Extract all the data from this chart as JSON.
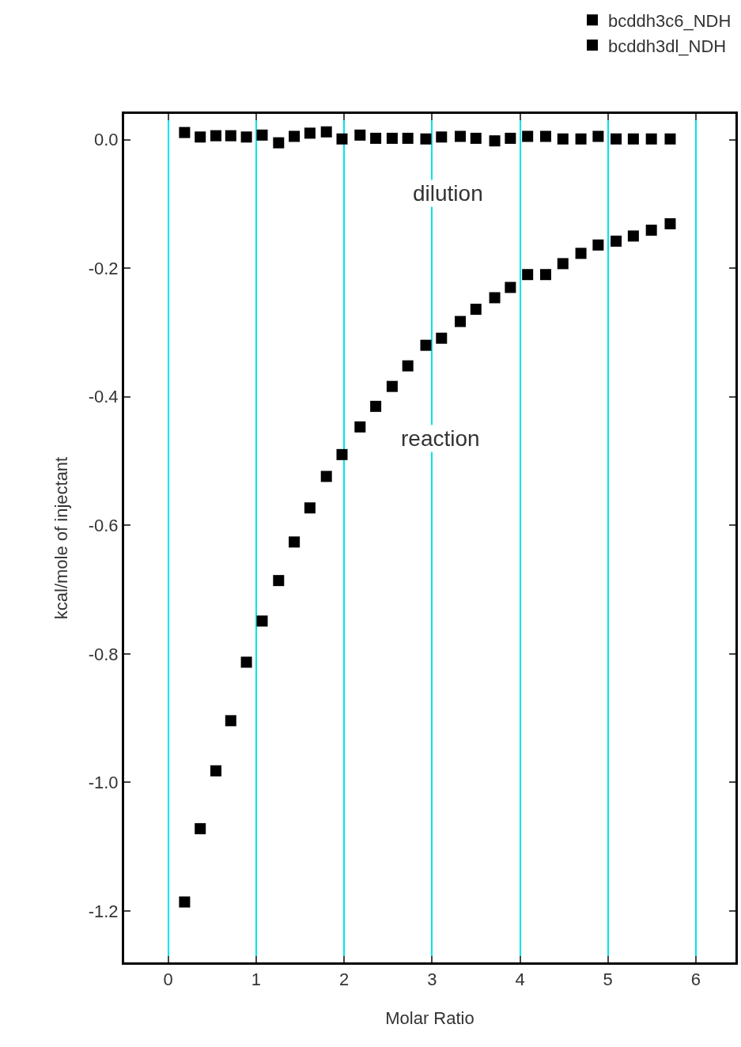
{
  "chart_data": {
    "type": "scatter",
    "xlabel": "Molar Ratio",
    "ylabel": "kcal/mole of injectant",
    "x": [
      0.187,
      0.365,
      0.543,
      0.712,
      0.89,
      1.069,
      1.256,
      1.434,
      1.612,
      1.799,
      1.977,
      2.182,
      2.36,
      2.547,
      2.725,
      2.93,
      3.108,
      3.321,
      3.499,
      3.713,
      3.891,
      4.087,
      4.292,
      4.488,
      4.693,
      4.889,
      5.093,
      5.289,
      5.494,
      5.708
    ],
    "series": [
      {
        "name": "bcddh3c6_NDH",
        "color": "#000000",
        "values": [
          -1.186,
          -1.072,
          -0.982,
          -0.904,
          -0.813,
          -0.749,
          -0.686,
          -0.626,
          -0.573,
          -0.524,
          -0.49,
          -0.447,
          -0.415,
          -0.384,
          -0.352,
          -0.32,
          -0.309,
          -0.283,
          -0.264,
          -0.246,
          -0.23,
          -0.21,
          -0.21,
          -0.193,
          -0.177,
          -0.164,
          -0.158,
          -0.15,
          -0.141,
          -0.131
        ]
      },
      {
        "name": "bcddh3dl_NDH",
        "color": "#000000",
        "values": [
          0.011,
          0.004,
          0.006,
          0.006,
          0.004,
          0.007,
          -0.005,
          0.005,
          0.01,
          0.012,
          0.001,
          0.007,
          0.002,
          0.002,
          0.002,
          0.001,
          0.004,
          0.005,
          0.002,
          -0.002,
          0.002,
          0.005,
          0.005,
          0.001,
          0.001,
          0.005,
          0.001,
          0.001,
          0.001,
          0.001
        ]
      }
    ],
    "annotations": [
      "dilution",
      "reaction"
    ],
    "xlim": [
      -0.5,
      6.45
    ],
    "xticks": [
      0,
      1,
      2,
      3,
      4,
      5,
      6
    ],
    "ylim": [
      -1.28,
      0.04
    ],
    "yticks": [
      {
        "value": 0,
        "label": "0.0"
      },
      {
        "value": -0.2,
        "label": "-0.2"
      },
      {
        "value": -0.4,
        "label": "-0.4"
      },
      {
        "value": -0.6,
        "label": "-0.6"
      },
      {
        "value": -0.8,
        "label": "-0.8"
      },
      {
        "value": -1.0,
        "label": "-1.0"
      },
      {
        "value": -1.2,
        "label": "-1.2"
      }
    ],
    "grid": "x",
    "legend": "top right",
    "marker": "square"
  }
}
